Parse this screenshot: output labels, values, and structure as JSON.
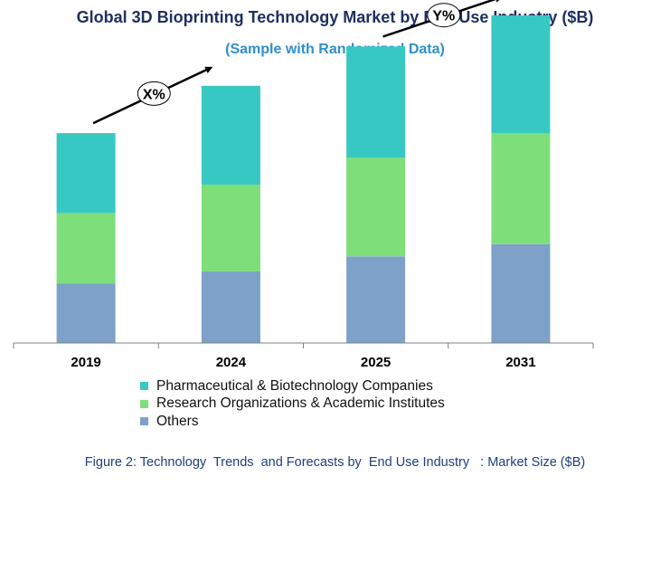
{
  "header": {
    "title": "Global 3D Bioprinting Technology Market by End Use Industry ($B)",
    "subtitle": "(Sample with Randomized Data)"
  },
  "caption": "Figure 2: Technology  Trends  and Forecasts by  End Use Industry   : Market Size ($B)",
  "colors": {
    "pharma": "#38c8c4",
    "research": "#7ede7a",
    "others": "#7ea1c9",
    "axis": "#808080"
  },
  "chart_data": {
    "type": "bar",
    "stacked": true,
    "categories": [
      "2019",
      "2024",
      "2025",
      "2031"
    ],
    "series": [
      {
        "name": "Others",
        "values": [
          44,
          53,
          64,
          73
        ],
        "color": "#7ea1c9"
      },
      {
        "name": "Research Organizations & Academic Institutes",
        "values": [
          52,
          64,
          73,
          82
        ],
        "color": "#7ede7a"
      },
      {
        "name": "Pharmaceutical & Biotechnology Companies",
        "values": [
          59,
          73,
          82,
          87
        ],
        "color": "#38c8c4"
      }
    ],
    "ylim": [
      0,
      250
    ],
    "grid": false,
    "y_axis_visible": false,
    "legend_position": "bottom",
    "annotations": [
      {
        "text": "X%",
        "from_category": "2019",
        "to_category": "2024"
      },
      {
        "text": "Y%",
        "from_category": "2025",
        "to_category": "2031"
      }
    ]
  },
  "legend": {
    "items": [
      {
        "label": "Pharmaceutical & Biotechnology Companies",
        "color": "#38c8c4"
      },
      {
        "label": "Research Organizations & Academic Institutes",
        "color": "#7ede7a"
      },
      {
        "label": "Others",
        "color": "#7ea1c9"
      }
    ]
  }
}
